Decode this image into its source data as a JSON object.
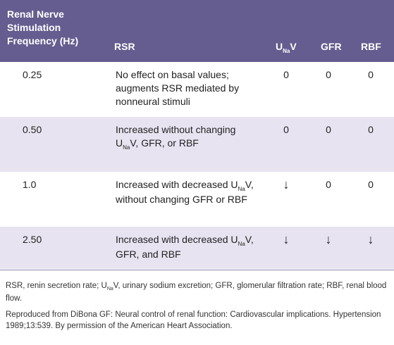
{
  "header": {
    "col1": "Renal Nerve\nStimulation\nFrequency (Hz)",
    "col2": "RSR",
    "col3_main": "U",
    "col3_sub": "Na",
    "col3_tail": "V",
    "col4": "GFR",
    "col5": "RBF"
  },
  "rows": [
    {
      "freq": "0.25",
      "rsr": "No effect on basal values; augments RSR mediated by nonneural stimuli",
      "unav": "0",
      "gfr": "0",
      "rbf": "0"
    },
    {
      "freq": "0.50",
      "rsr_a": "Increased without changing U",
      "rsr_sub": "Na",
      "rsr_b": "V, GFR, or RBF",
      "unav": "0",
      "gfr": "0",
      "rbf": "0"
    },
    {
      "freq": "1.0",
      "rsr_a": "Increased with decreased U",
      "rsr_sub": "Na",
      "rsr_b": "V, without changing GFR or RBF",
      "unav": "↓",
      "gfr": "0",
      "rbf": "0"
    },
    {
      "freq": "2.50",
      "rsr_a": "Increased with decreased U",
      "rsr_sub": "Na",
      "rsr_b": "V, GFR, and RBF",
      "unav": "↓",
      "gfr": "↓",
      "rbf": "↓"
    }
  ],
  "footnote1_a": "RSR, renin secretion rate; U",
  "footnote1_sub": "Na",
  "footnote1_b": "V, urinary sodium excretion; GFR, glomerular filtration rate; RBF, renal blood flow.",
  "footnote2": "Reproduced from DiBona GF: Neural control of renal function: Cardiovascular implications. Hypertension 1989;13:539. By permission of the American Heart Association."
}
